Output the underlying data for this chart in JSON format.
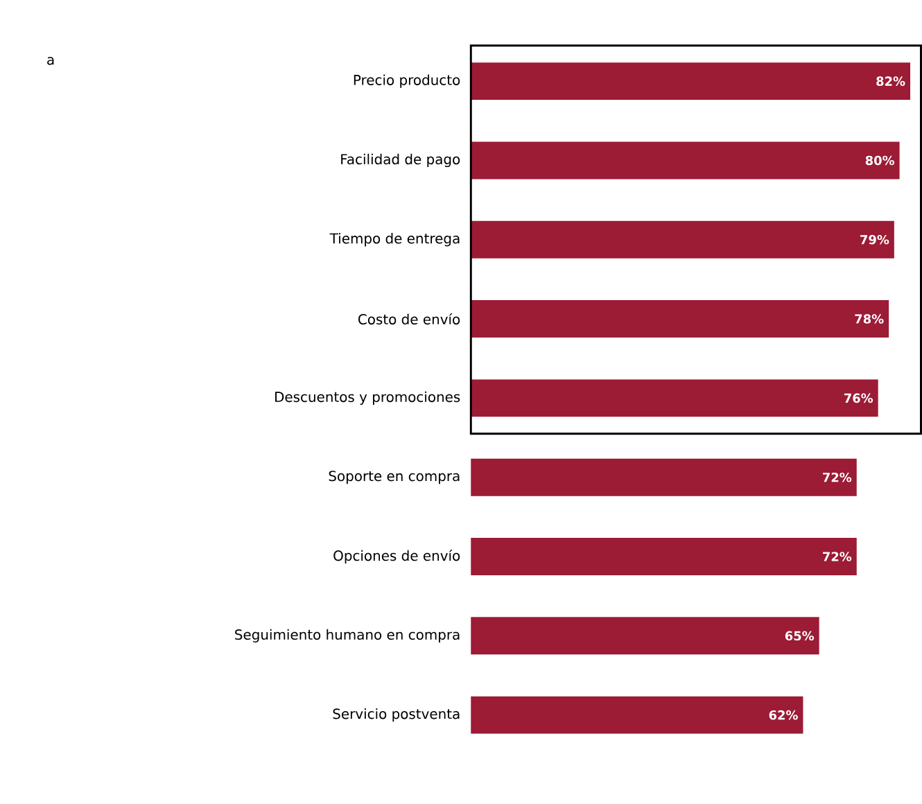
{
  "chart_data": {
    "type": "bar",
    "orientation": "horizontal",
    "annotations": [
      "a"
    ],
    "categories": [
      "Precio producto",
      "Facilidad de pago",
      "Tiempo de entrega",
      "Costo de envío",
      "Descuentos y promociones",
      "Soporte en compra",
      "Opciones de envío",
      "Seguimiento humano en compra",
      "Servicio postventa"
    ],
    "values": [
      82,
      80,
      79,
      78,
      76,
      72,
      72,
      65,
      62
    ],
    "value_labels": [
      "82%",
      "80%",
      "79%",
      "78%",
      "76%",
      "72%",
      "72%",
      "65%",
      "62%"
    ],
    "color": "#9c1b35",
    "xlim": [
      0,
      84
    ]
  }
}
